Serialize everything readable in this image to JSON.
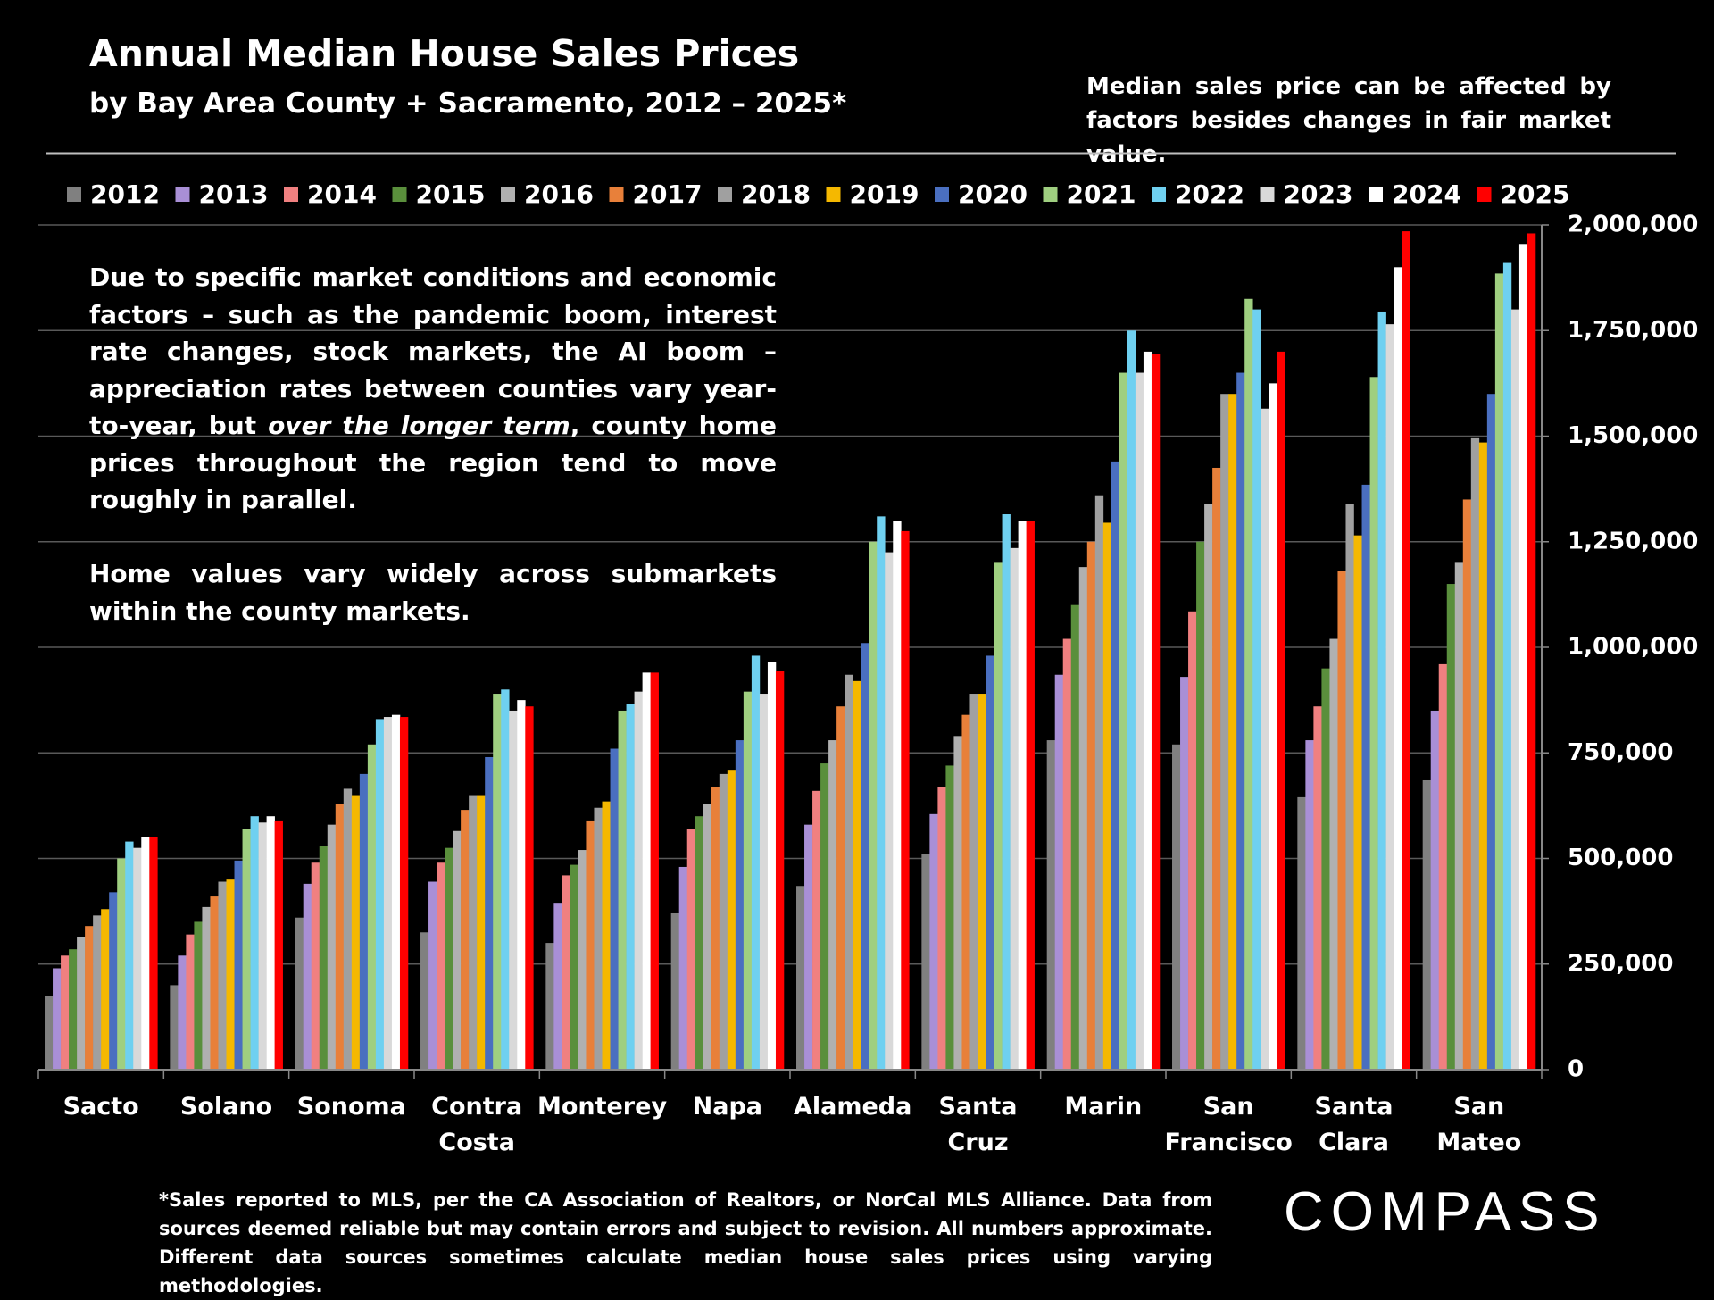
{
  "chart_data": {
    "type": "bar",
    "title": "Annual Median House Sales Prices",
    "subtitle": "by Bay Area County + Sacramento, 2012 – 2025*",
    "note": "Median sales price can be affected by factors besides changes in fair market value.",
    "annotation": [
      [
        "Due to specific market conditions and economic factors – such as the pandemic boom, interest rate changes, stock markets, the AI boom – appreciation rates between counties vary year-to-year, but ",
        "over the longer term",
        ", county home prices throughout the region tend to move roughly in parallel."
      ],
      [
        "Home values vary widely across submarkets within the county markets."
      ]
    ],
    "footnote": "*Sales reported to MLS, per the CA Association of Realtors, or NorCal MLS Alliance. Data from sources deemed reliable but may contain errors and subject to revision. All numbers approximate. Different data sources sometimes calculate median house sales prices using varying methodologies.",
    "logo": "COMPASS",
    "categories": [
      "Sacto",
      "Solano",
      "Sonoma",
      "Contra Costa",
      "Monterey",
      "Napa",
      "Alameda",
      "Santa Cruz",
      "Marin",
      "San Francisco",
      "Santa Clara",
      "San Mateo"
    ],
    "series": [
      {
        "name": "2012",
        "color": "#808080",
        "values": [
          175000,
          200000,
          360000,
          325000,
          300000,
          370000,
          435000,
          510000,
          780000,
          770000,
          645000,
          685000
        ]
      },
      {
        "name": "2013",
        "color": "#a98fd6",
        "values": [
          240000,
          270000,
          440000,
          445000,
          395000,
          480000,
          580000,
          605000,
          935000,
          930000,
          780000,
          850000
        ]
      },
      {
        "name": "2014",
        "color": "#f08080",
        "values": [
          270000,
          320000,
          490000,
          490000,
          460000,
          570000,
          660000,
          670000,
          1020000,
          1085000,
          860000,
          960000
        ]
      },
      {
        "name": "2015",
        "color": "#5a8f3c",
        "values": [
          285000,
          350000,
          530000,
          525000,
          485000,
          600000,
          725000,
          720000,
          1100000,
          1250000,
          950000,
          1150000
        ]
      },
      {
        "name": "2016",
        "color": "#b0b0b0",
        "values": [
          315000,
          385000,
          580000,
          565000,
          520000,
          630000,
          780000,
          790000,
          1190000,
          1340000,
          1020000,
          1200000
        ]
      },
      {
        "name": "2017",
        "color": "#e8803a",
        "values": [
          340000,
          410000,
          630000,
          615000,
          590000,
          670000,
          860000,
          840000,
          1250000,
          1425000,
          1180000,
          1350000
        ]
      },
      {
        "name": "2018",
        "color": "#a0a0a0",
        "values": [
          365000,
          445000,
          665000,
          650000,
          620000,
          700000,
          935000,
          890000,
          1360000,
          1600000,
          1340000,
          1495000
        ]
      },
      {
        "name": "2019",
        "color": "#f5b800",
        "values": [
          380000,
          450000,
          650000,
          650000,
          635000,
          710000,
          920000,
          890000,
          1295000,
          1600000,
          1265000,
          1485000
        ]
      },
      {
        "name": "2020",
        "color": "#4a6fc0",
        "values": [
          420000,
          495000,
          700000,
          740000,
          760000,
          780000,
          1010000,
          980000,
          1440000,
          1650000,
          1385000,
          1600000
        ]
      },
      {
        "name": "2021",
        "color": "#9fcf80",
        "values": [
          500000,
          570000,
          770000,
          890000,
          850000,
          895000,
          1250000,
          1200000,
          1650000,
          1825000,
          1640000,
          1885000
        ]
      },
      {
        "name": "2022",
        "color": "#6fd0f0",
        "values": [
          540000,
          600000,
          830000,
          900000,
          865000,
          980000,
          1310000,
          1315000,
          1750000,
          1800000,
          1795000,
          1910000
        ]
      },
      {
        "name": "2023",
        "color": "#d9d9d9",
        "values": [
          525000,
          585000,
          835000,
          850000,
          895000,
          890000,
          1225000,
          1235000,
          1650000,
          1565000,
          1765000,
          1800000
        ]
      },
      {
        "name": "2024",
        "color": "#ffffff",
        "values": [
          550000,
          600000,
          840000,
          875000,
          940000,
          965000,
          1300000,
          1300000,
          1700000,
          1625000,
          1900000,
          1955000
        ]
      },
      {
        "name": "2025",
        "color": "#ff0000",
        "values": [
          550000,
          590000,
          835000,
          860000,
          940000,
          945000,
          1275000,
          1300000,
          1695000,
          1700000,
          1985000,
          1980000
        ]
      }
    ],
    "ylim": [
      0,
      2000000
    ],
    "yticks": [
      0,
      {
        "value": 250000,
        "label": "250,000"
      },
      {
        "value": 500000,
        "label": "500,000"
      },
      {
        "value": 750000,
        "label": "750,000"
      },
      {
        "value": 1000000,
        "label": "1,000,000"
      },
      {
        "value": 1250000,
        "label": "1,250,000"
      },
      {
        "value": 1500000,
        "label": "1,500,000"
      },
      {
        "value": 1750000,
        "label": "1,750,000"
      },
      {
        "value": 2000000,
        "label": "2,000,000"
      }
    ],
    "grid": true
  }
}
